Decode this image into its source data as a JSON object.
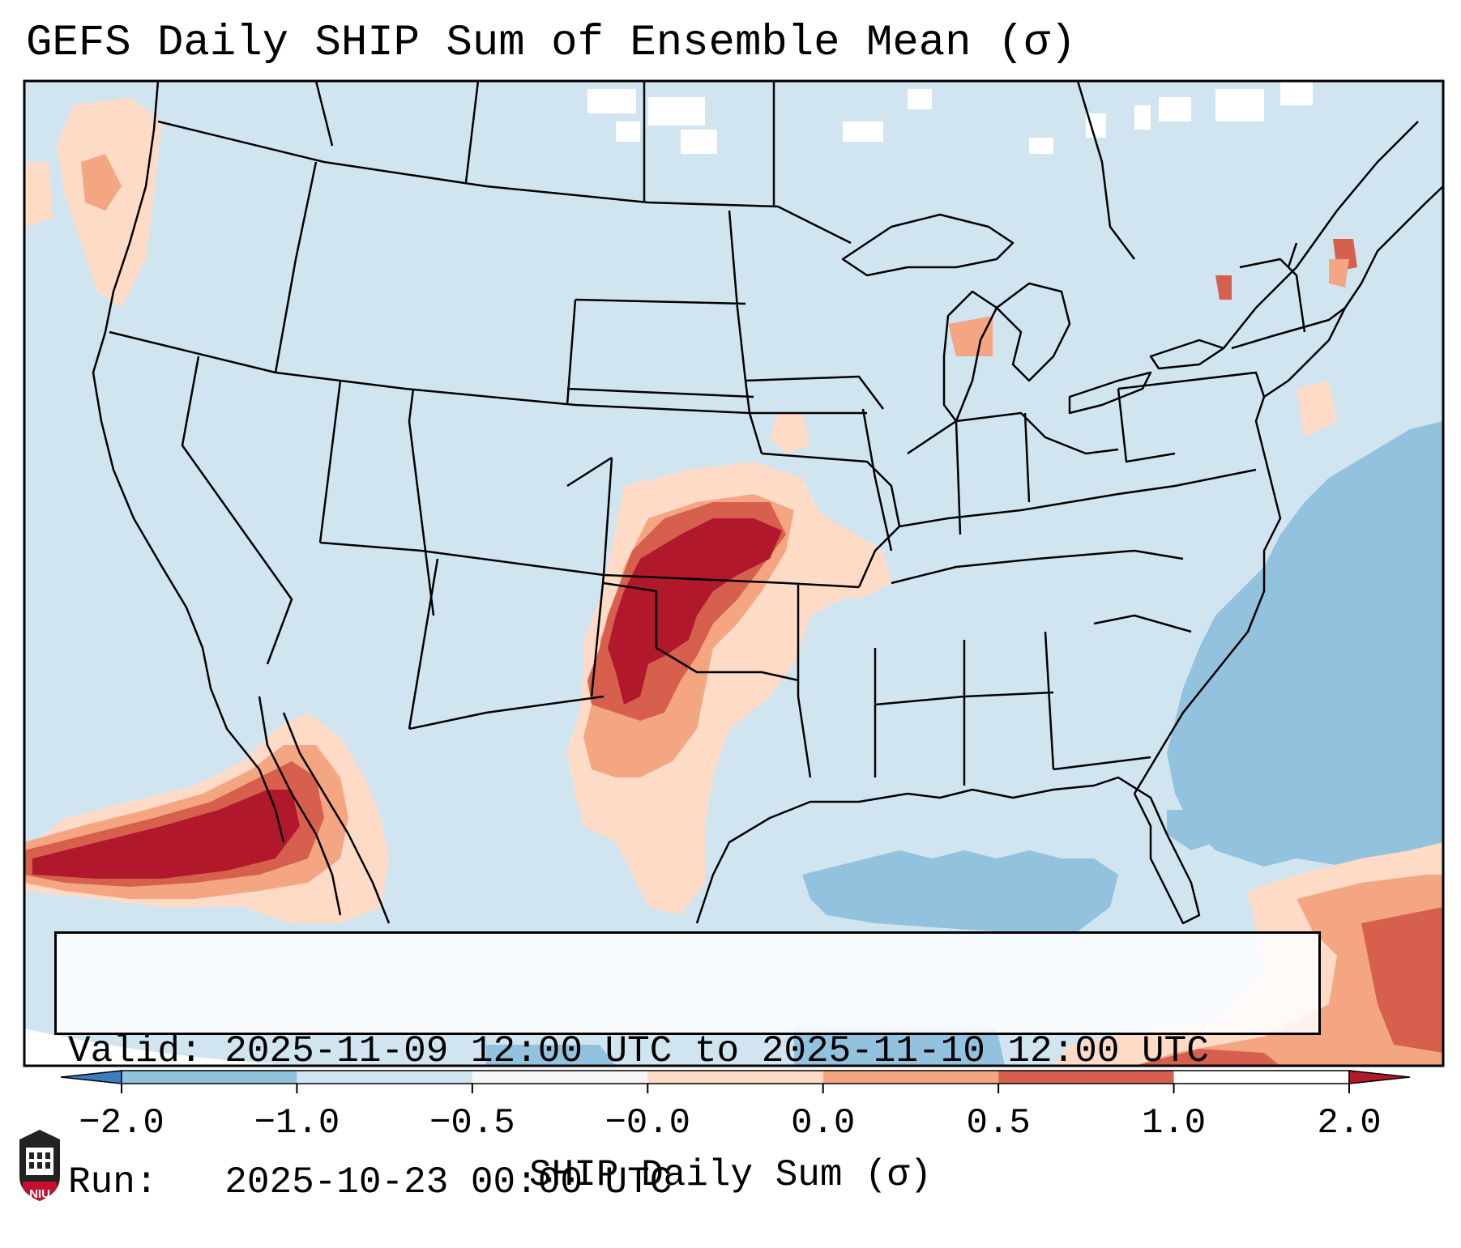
{
  "title": "GEFS Daily SHIP Sum of Ensemble Mean (σ)",
  "info": {
    "valid_label": "Valid:",
    "valid_text": "2025-11-09 12:00 UTC to 2025-11-10 12:00 UTC",
    "run_label": "Run:",
    "run_text": "2025-10-23 00:00 UTC"
  },
  "colorbar": {
    "label": "SHIP Daily Sum (σ)",
    "ticks": [
      "−2.0",
      "−1.0",
      "−0.5",
      "−0.0",
      "0.0",
      "0.5",
      "1.0",
      "2.0"
    ],
    "colors": [
      "#3b7dc0",
      "#92c2de",
      "#d1e5f0",
      "#f7f7f7",
      "#fddbc7",
      "#f4a582",
      "#d6604d",
      "#b2182b"
    ]
  },
  "logo": {
    "text": "NIU"
  },
  "colors": {
    "background_field": "#d1e5f0",
    "ocean_negative": "#92c2de",
    "positive_light": "#fddbc7",
    "positive_mid": "#f4a582",
    "positive_strong": "#d6604d",
    "positive_max": "#b2182b",
    "outline": "#000000"
  }
}
